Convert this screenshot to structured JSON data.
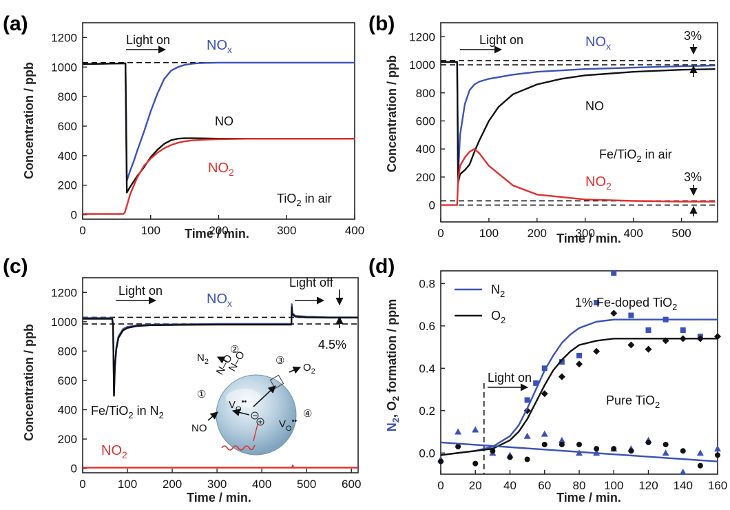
{
  "colors": {
    "blue": "#3a52b8",
    "black": "#111111",
    "red": "#e03030"
  },
  "panels": [
    {
      "label": "(a)",
      "xlabel": "Time / min.",
      "ylabel": "Concentration / ppb",
      "xticks": [
        0,
        100,
        200,
        300,
        400
      ],
      "yticks": [
        0,
        200,
        400,
        600,
        800,
        1000,
        1200
      ],
      "annotations": {
        "light_on": "Light on",
        "nox": "NOx",
        "no": "NO",
        "no2": "NO2",
        "condition": "TiO2 in air"
      }
    },
    {
      "label": "(b)",
      "xlabel": "Time / min.",
      "ylabel": "Concentration / ppb",
      "xticks": [
        0,
        100,
        200,
        300,
        400,
        500
      ],
      "yticks": [
        0,
        200,
        400,
        600,
        800,
        1000,
        1200
      ],
      "annotations": {
        "light_on": "Light on",
        "nox": "NOx",
        "no": "NO",
        "no2": "NO2",
        "condition": "Fe/TiO2 in air",
        "pct_top": "3%",
        "pct_bottom": "3%"
      }
    },
    {
      "label": "(c)",
      "xlabel": "Time / min.",
      "ylabel": "Concentration / ppb",
      "xticks": [
        0,
        100,
        200,
        300,
        400,
        500,
        600
      ],
      "yticks": [
        0,
        200,
        400,
        600,
        800,
        1000,
        1200
      ],
      "annotations": {
        "light_on": "Light on",
        "light_off": "Light off",
        "nox": "NOx",
        "no2": "NO2",
        "condition": "Fe/TiO2 in N2",
        "pct": "4.5%",
        "scheme": {
          "n2": "N2",
          "o2": "O2",
          "no": "NO",
          "step1": "①",
          "step2": "②",
          "step3": "③",
          "step4": "④",
          "vo": "Vo••"
        }
      }
    },
    {
      "label": "(d)",
      "xlabel": "Time / min.",
      "ylabel": "N2, O2 formation / ppm",
      "xticks": [
        0,
        20,
        40,
        60,
        80,
        100,
        120,
        140,
        160
      ],
      "yticks": [
        0.0,
        0.2,
        0.4,
        0.6,
        0.8
      ],
      "annotations": {
        "light_on": "Light on",
        "sample_doped": "1% Fe-doped TiO2",
        "sample_pure": "Pure TiO2"
      },
      "legend": [
        {
          "name": "N2",
          "color": "#3a52b8"
        },
        {
          "name": "O2",
          "color": "#111111"
        }
      ]
    }
  ],
  "chart_data": [
    {
      "type": "line",
      "title": "(a) TiO2 in air",
      "xlabel": "Time / min.",
      "ylabel": "Concentration / ppb",
      "xlim": [
        0,
        400
      ],
      "ylim": [
        -30,
        1300
      ],
      "reference_lines": [
        1030
      ],
      "light_on_min": 63,
      "series": [
        {
          "name": "NOx",
          "color": "#3a52b8",
          "x": [
            0,
            62,
            63,
            65,
            70,
            75,
            80,
            90,
            100,
            110,
            120,
            130,
            140,
            150,
            160,
            170,
            180,
            200,
            250,
            300,
            350,
            400
          ],
          "y": [
            1020,
            1025,
            1025,
            230,
            300,
            360,
            430,
            560,
            700,
            820,
            920,
            975,
            1000,
            1015,
            1022,
            1026,
            1028,
            1030,
            1030,
            1030,
            1030,
            1030
          ]
        },
        {
          "name": "NO",
          "color": "#111111",
          "x": [
            0,
            62,
            63,
            65,
            70,
            80,
            90,
            100,
            110,
            120,
            130,
            140,
            150,
            160,
            180,
            200,
            250,
            300,
            350,
            400
          ],
          "y": [
            1020,
            1025,
            1025,
            150,
            190,
            260,
            320,
            390,
            440,
            480,
            505,
            515,
            518,
            518,
            517,
            515,
            515,
            515,
            515,
            515
          ]
        },
        {
          "name": "NO2",
          "color": "#e03030",
          "x": [
            0,
            20,
            40,
            60,
            62,
            65,
            70,
            80,
            90,
            100,
            110,
            120,
            130,
            140,
            150,
            160,
            180,
            200,
            250,
            300,
            350,
            400
          ],
          "y": [
            5,
            5,
            5,
            5,
            15,
            60,
            140,
            250,
            330,
            380,
            420,
            450,
            472,
            487,
            497,
            503,
            508,
            512,
            515,
            515,
            515,
            515
          ]
        }
      ]
    },
    {
      "type": "line",
      "title": "(b) Fe/TiO2 in air",
      "xlabel": "Time / min.",
      "ylabel": "Concentration / ppb",
      "xlim": [
        0,
        575
      ],
      "ylim": [
        -120,
        1300
      ],
      "reference_lines": [
        1030,
        1000,
        30,
        0
      ],
      "light_on_min": 35,
      "series": [
        {
          "name": "NOx",
          "color": "#3a52b8",
          "x": [
            0,
            33,
            34,
            36,
            40,
            50,
            60,
            70,
            80,
            100,
            150,
            200,
            300,
            400,
            500,
            570
          ],
          "y": [
            1020,
            1020,
            1020,
            200,
            500,
            720,
            820,
            860,
            880,
            900,
            930,
            950,
            970,
            980,
            990,
            995
          ]
        },
        {
          "name": "NO",
          "color": "#111111",
          "x": [
            0,
            33,
            34,
            36,
            40,
            50,
            60,
            70,
            80,
            100,
            120,
            150,
            200,
            250,
            300,
            400,
            500,
            570
          ],
          "y": [
            1020,
            1020,
            1020,
            160,
            220,
            250,
            290,
            380,
            460,
            600,
            700,
            790,
            860,
            900,
            925,
            950,
            965,
            970
          ]
        },
        {
          "name": "NO2",
          "color": "#e03030",
          "x": [
            0,
            30,
            34,
            36,
            40,
            50,
            60,
            70,
            80,
            100,
            150,
            200,
            300,
            400,
            500,
            570
          ],
          "y": [
            0,
            0,
            0,
            180,
            280,
            340,
            380,
            400,
            370,
            280,
            140,
            75,
            40,
            30,
            25,
            25
          ]
        }
      ]
    },
    {
      "type": "line",
      "title": "(c) Fe/TiO2 in N2",
      "xlabel": "Time / min.",
      "ylabel": "Concentration / ppb",
      "xlim": [
        0,
        615
      ],
      "ylim": [
        -30,
        1300
      ],
      "reference_lines": [
        1030,
        985
      ],
      "light_on_min": 68,
      "light_off_min": 468,
      "series": [
        {
          "name": "NOx",
          "color": "#3a52b8",
          "x": [
            0,
            66,
            68,
            70,
            72,
            75,
            80,
            90,
            100,
            120,
            150,
            200,
            300,
            400,
            466,
            467,
            468,
            475,
            500,
            550,
            600,
            615
          ],
          "y": [
            1025,
            1025,
            980,
            500,
            700,
            820,
            900,
            950,
            965,
            975,
            980,
            982,
            985,
            985,
            985,
            1120,
            1060,
            1040,
            1035,
            1030,
            1030,
            1030
          ]
        },
        {
          "name": "NO",
          "color": "#111111",
          "x": [
            0,
            66,
            68,
            70,
            72,
            75,
            80,
            90,
            100,
            120,
            150,
            200,
            300,
            400,
            466,
            467,
            468,
            475,
            500,
            550,
            600,
            615
          ],
          "y": [
            1020,
            1020,
            975,
            495,
            690,
            810,
            890,
            940,
            958,
            970,
            976,
            978,
            980,
            980,
            980,
            1100,
            1050,
            1035,
            1030,
            1028,
            1028,
            1028
          ]
        },
        {
          "name": "NO2",
          "color": "#e03030",
          "x": [
            0,
            100,
            200,
            300,
            400,
            468,
            469,
            470,
            500,
            600,
            615
          ],
          "y": [
            5,
            5,
            5,
            5,
            5,
            5,
            20,
            5,
            5,
            5,
            5
          ]
        }
      ]
    },
    {
      "type": "scatter",
      "title": "(d)",
      "xlabel": "Time / min.",
      "ylabel": "N2, O2 formation / ppm",
      "xlim": [
        0,
        160
      ],
      "ylim": [
        -0.1,
        0.86
      ],
      "light_on_min": 25,
      "series": [
        {
          "name": "N2 1% Fe-doped TiO2",
          "marker": "square",
          "color": "#3a52b8",
          "x": [
            50,
            55,
            60,
            70,
            80,
            90,
            100,
            110,
            120,
            130,
            140,
            150
          ],
          "y": [
            0.25,
            0.33,
            0.4,
            0.43,
            0.46,
            0.71,
            0.85,
            0.65,
            0.58,
            0.63,
            0.58,
            0.55
          ]
        },
        {
          "name": "O2 1% Fe-doped TiO2",
          "marker": "diamond",
          "color": "#111111",
          "x": [
            50,
            60,
            70,
            80,
            90,
            100,
            110,
            120,
            130,
            140,
            150,
            160
          ],
          "y": [
            0.2,
            0.28,
            0.36,
            0.42,
            0.48,
            0.66,
            0.51,
            0.49,
            0.53,
            0.54,
            0.54,
            0.55
          ]
        },
        {
          "name": "N2 Pure TiO2",
          "marker": "triangle",
          "color": "#3a52b8",
          "x": [
            0,
            10,
            20,
            30,
            40,
            50,
            60,
            70,
            80,
            90,
            100,
            110,
            120,
            130,
            140,
            150,
            160
          ],
          "y": [
            -0.03,
            0.1,
            0.11,
            0.0,
            -0.01,
            0.08,
            0.09,
            0.06,
            0.0,
            0.0,
            0.02,
            0.02,
            0.06,
            0.0,
            -0.09,
            0.0,
            0.02
          ]
        },
        {
          "name": "O2 Pure TiO2",
          "marker": "circle",
          "color": "#111111",
          "x": [
            0,
            10,
            20,
            30,
            40,
            50,
            60,
            70,
            80,
            90,
            100,
            110,
            120,
            130,
            140,
            150,
            160
          ],
          "y": [
            -0.04,
            0.03,
            -0.05,
            0.01,
            -0.02,
            -0.03,
            0.04,
            0.04,
            0.04,
            0.02,
            0.02,
            0.01,
            0.05,
            0.04,
            0.01,
            -0.06,
            -0.01
          ]
        },
        {
          "name": "N2 fit (doped)",
          "type": "line",
          "color": "#3a52b8",
          "x": [
            0,
            20,
            30,
            40,
            45,
            50,
            55,
            60,
            65,
            70,
            75,
            80,
            90,
            100,
            110,
            120,
            140,
            160
          ],
          "y": [
            -0.01,
            0.01,
            0.03,
            0.08,
            0.13,
            0.21,
            0.3,
            0.39,
            0.46,
            0.52,
            0.56,
            0.59,
            0.62,
            0.63,
            0.63,
            0.63,
            0.63,
            0.63
          ]
        },
        {
          "name": "O2 fit (doped)",
          "type": "line",
          "color": "#111111",
          "x": [
            0,
            20,
            30,
            40,
            45,
            50,
            55,
            60,
            65,
            70,
            75,
            80,
            90,
            100,
            110,
            120,
            140,
            160
          ],
          "y": [
            -0.01,
            0.01,
            0.02,
            0.06,
            0.1,
            0.16,
            0.24,
            0.32,
            0.39,
            0.44,
            0.48,
            0.51,
            0.53,
            0.54,
            0.54,
            0.54,
            0.54,
            0.54
          ]
        },
        {
          "name": "Pure fit",
          "type": "line",
          "color": "#3a52b8",
          "x": [
            0,
            160
          ],
          "y": [
            0.05,
            -0.04
          ]
        }
      ]
    }
  ]
}
